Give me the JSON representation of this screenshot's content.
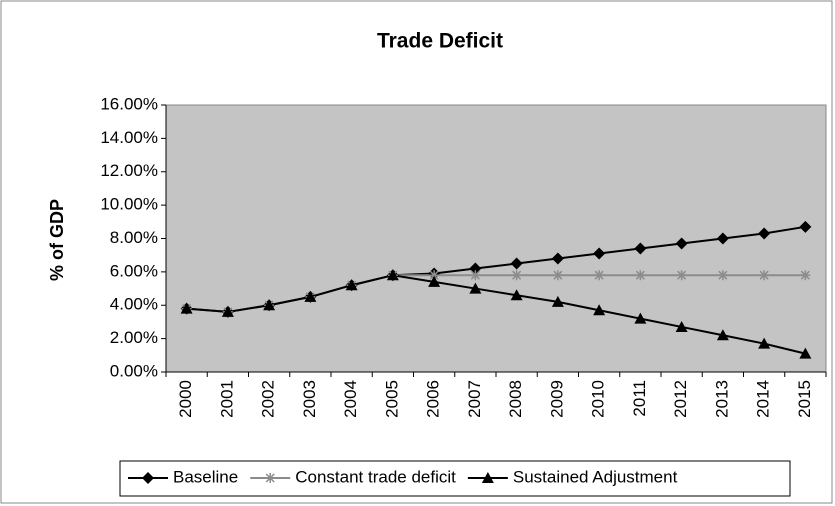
{
  "chart_data": {
    "type": "line",
    "title": "Trade Deficit",
    "y_label": "% of GDP",
    "categories": [
      "2000",
      "2001",
      "2002",
      "2003",
      "2004",
      "2005",
      "2006",
      "2007",
      "2008",
      "2009",
      "2010",
      "2011",
      "2012",
      "2013",
      "2014",
      "2015"
    ],
    "series": [
      {
        "name": "Baseline",
        "color": "#000000",
        "marker": "diamond",
        "values": [
          3.8,
          3.6,
          4.0,
          4.5,
          5.2,
          5.8,
          5.9,
          6.2,
          6.5,
          6.8,
          7.1,
          7.4,
          7.7,
          8.0,
          8.3,
          8.7
        ]
      },
      {
        "name": "Constant trade deficit",
        "color": "#8c8c8c",
        "marker": "asterisk",
        "values": [
          3.8,
          3.6,
          4.0,
          4.5,
          5.2,
          5.8,
          5.8,
          5.8,
          5.8,
          5.8,
          5.8,
          5.8,
          5.8,
          5.8,
          5.8,
          5.8
        ]
      },
      {
        "name": "Sustained Adjustment",
        "color": "#000000",
        "marker": "triangle",
        "values": [
          3.8,
          3.6,
          4.0,
          4.5,
          5.2,
          5.8,
          5.4,
          5.0,
          4.6,
          4.2,
          3.7,
          3.2,
          2.7,
          2.2,
          1.7,
          1.1
        ]
      }
    ],
    "ylim": [
      0,
      16
    ],
    "yticks": [
      {
        "value": 0,
        "label": "0.00%"
      },
      {
        "value": 2,
        "label": "2.00%"
      },
      {
        "value": 4,
        "label": "4.00%"
      },
      {
        "value": 6,
        "label": "6.00%"
      },
      {
        "value": 8,
        "label": "8.00%"
      },
      {
        "value": 10,
        "label": "10.00%"
      },
      {
        "value": 12,
        "label": "12.00%"
      },
      {
        "value": 14,
        "label": "14.00%"
      },
      {
        "value": 16,
        "label": "16.00%"
      }
    ],
    "grid": false,
    "legend": "bottom"
  }
}
